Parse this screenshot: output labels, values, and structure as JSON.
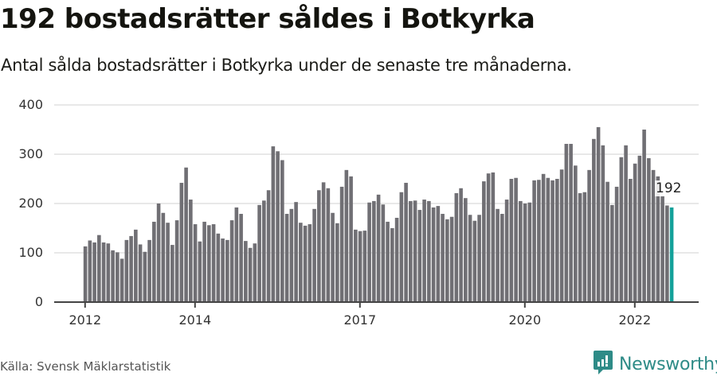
{
  "header": {
    "title": "192 bostadsrätter såldes i Botkyrka",
    "subtitle": "Antal sålda bostadsrätter i Botkyrka under de senaste tre månaderna."
  },
  "footer": {
    "source": "Källa: Svensk Mäklarstatistik",
    "brand": "Newsworthy",
    "brand_icon": "bar-chart-speech-bubble-icon"
  },
  "colors": {
    "bar": "#706f74",
    "highlight": "#14a19a",
    "grid": "#e0e0e0",
    "axis": "#444444",
    "brand": "#2e8b87"
  },
  "chart_data": {
    "type": "bar",
    "title": "192 bostadsrätter såldes i Botkyrka",
    "subtitle": "Antal sålda bostadsrätter i Botkyrka under de senaste tre månaderna.",
    "xlabel": "",
    "ylabel": "",
    "ylim": [
      0,
      400
    ],
    "yticks": [
      0,
      100,
      200,
      300,
      400
    ],
    "xticks": [
      {
        "label": "2012",
        "index": 0
      },
      {
        "label": "2014",
        "index": 24
      },
      {
        "label": "2017",
        "index": 60
      },
      {
        "label": "2020",
        "index": 96
      },
      {
        "label": "2022",
        "index": 120
      }
    ],
    "grid": true,
    "legend": null,
    "start": "2012-01",
    "end": "2022-09",
    "frequency": "monthly",
    "highlight_index": 128,
    "annotation": {
      "label": "192",
      "index": 128
    },
    "values": [
      113,
      125,
      121,
      136,
      121,
      119,
      105,
      101,
      88,
      126,
      134,
      147,
      117,
      102,
      126,
      163,
      200,
      181,
      161,
      116,
      166,
      242,
      273,
      208,
      158,
      123,
      163,
      156,
      158,
      139,
      129,
      126,
      166,
      192,
      179,
      124,
      110,
      119,
      197,
      206,
      227,
      316,
      306,
      288,
      179,
      189,
      203,
      161,
      155,
      158,
      189,
      227,
      243,
      231,
      181,
      160,
      234,
      268,
      255,
      147,
      144,
      145,
      202,
      205,
      218,
      198,
      163,
      150,
      171,
      223,
      242,
      205,
      206,
      187,
      208,
      205,
      192,
      195,
      179,
      168,
      173,
      221,
      231,
      211,
      177,
      165,
      177,
      245,
      261,
      263,
      189,
      179,
      208,
      250,
      252,
      205,
      200,
      202,
      247,
      248,
      260,
      252,
      247,
      250,
      269,
      321,
      321,
      277,
      221,
      223,
      268,
      331,
      355,
      318,
      244,
      197,
      234,
      294,
      318,
      250,
      281,
      297,
      350,
      292,
      268,
      255,
      215,
      196,
      192
    ]
  }
}
